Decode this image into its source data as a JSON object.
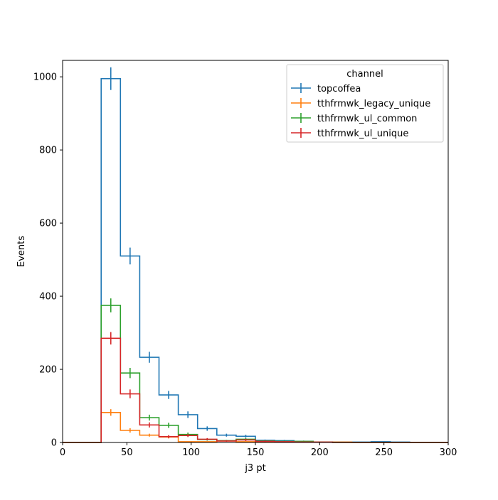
{
  "chart_data": {
    "type": "histogram-step",
    "xlabel": "j3 pt",
    "ylabel": "Events",
    "xlim": [
      0,
      300
    ],
    "ylim": [
      0,
      1045
    ],
    "x_ticks": [
      0,
      50,
      100,
      150,
      200,
      250,
      300
    ],
    "y_ticks": [
      0,
      200,
      400,
      600,
      800,
      1000
    ],
    "grid": false,
    "legend_title": "channel",
    "legend_position": "top-right",
    "bin_edges": [
      0,
      15,
      30,
      45,
      60,
      75,
      90,
      105,
      120,
      135,
      150,
      165,
      180,
      195,
      210,
      225,
      240,
      255,
      270,
      285,
      300
    ],
    "series": [
      {
        "name": "topcoffea",
        "color": "#1f77b4",
        "values": [
          0,
          0,
          995,
          510,
          233,
          130,
          76,
          38,
          20,
          17,
          6,
          5,
          3,
          1,
          1,
          1,
          2,
          1,
          0,
          0
        ],
        "errors": [
          0,
          0,
          31,
          23,
          15,
          11,
          9,
          6,
          4,
          4,
          2,
          2,
          2,
          1,
          1,
          1,
          1,
          1,
          0,
          0
        ]
      },
      {
        "name": "tthfrmwk_legacy_unique",
        "color": "#ff7f0e",
        "values": [
          0,
          0,
          82,
          33,
          20,
          15,
          2,
          2,
          4,
          2,
          2,
          1,
          1,
          1,
          1,
          0,
          0,
          0,
          0,
          0
        ],
        "errors": [
          0,
          0,
          9,
          6,
          4,
          4,
          1,
          1,
          2,
          1,
          1,
          1,
          1,
          1,
          1,
          0,
          0,
          0,
          0,
          0
        ]
      },
      {
        "name": "tthfrmwk_ul_common",
        "color": "#2ca02c",
        "values": [
          0,
          0,
          375,
          190,
          68,
          47,
          22,
          8,
          5,
          9,
          4,
          3,
          3,
          1,
          0,
          0,
          0,
          0,
          0,
          0
        ],
        "errors": [
          0,
          0,
          19,
          14,
          8,
          7,
          5,
          3,
          2,
          3,
          2,
          2,
          2,
          1,
          0,
          0,
          0,
          0,
          0,
          0
        ]
      },
      {
        "name": "tthfrmwk_ul_unique",
        "color": "#d62728",
        "values": [
          0,
          0,
          285,
          133,
          48,
          16,
          19,
          9,
          4,
          7,
          3,
          2,
          1,
          1,
          0,
          0,
          0,
          0,
          0,
          0
        ],
        "errors": [
          0,
          0,
          17,
          12,
          7,
          4,
          4,
          3,
          2,
          3,
          2,
          1,
          1,
          1,
          0,
          0,
          0,
          0,
          0,
          0
        ]
      }
    ]
  }
}
